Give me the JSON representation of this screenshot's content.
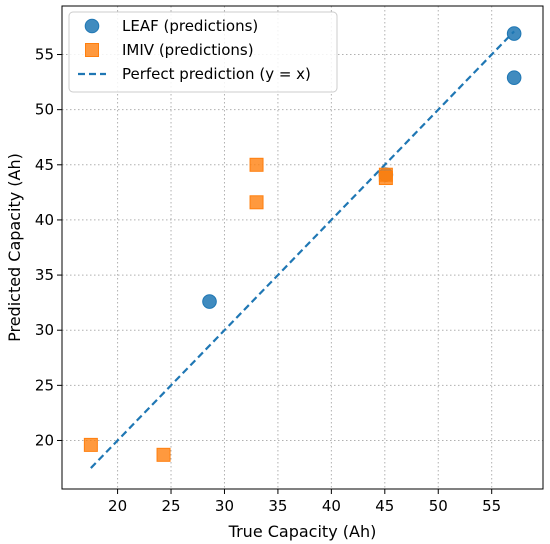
{
  "chart_data": {
    "type": "scatter",
    "title": "",
    "xlabel": "True Capacity (Ah)",
    "ylabel": "Predicted Capacity (Ah)",
    "xlim": [
      14.8,
      59.8
    ],
    "ylim": [
      15.6,
      59.4
    ],
    "xticks": [
      20,
      25,
      30,
      35,
      40,
      45,
      50,
      55
    ],
    "yticks": [
      20,
      25,
      30,
      35,
      40,
      45,
      50,
      55
    ],
    "grid": true,
    "grid_style": "dotted",
    "legend_position": "upper-left",
    "series": [
      {
        "name": "LEAF (predictions)",
        "marker": "circle",
        "color": "#1f77b4",
        "points": [
          [
            28.6,
            32.6
          ],
          [
            45.1,
            44.1
          ],
          [
            57.1,
            56.9
          ],
          [
            57.1,
            52.9
          ]
        ]
      },
      {
        "name": "IMIV (predictions)",
        "marker": "square",
        "color": "#ff7f0e",
        "points": [
          [
            17.5,
            19.6
          ],
          [
            24.3,
            18.7
          ],
          [
            33.0,
            45.0
          ],
          [
            33.0,
            41.6
          ],
          [
            45.1,
            44.1
          ],
          [
            45.1,
            43.8
          ]
        ]
      },
      {
        "name": "Perfect prediction (y = x)",
        "marker": "dashed-line",
        "color": "#1f77b4",
        "points": [
          [
            17.5,
            17.5
          ],
          [
            57.1,
            57.1
          ]
        ]
      }
    ]
  }
}
